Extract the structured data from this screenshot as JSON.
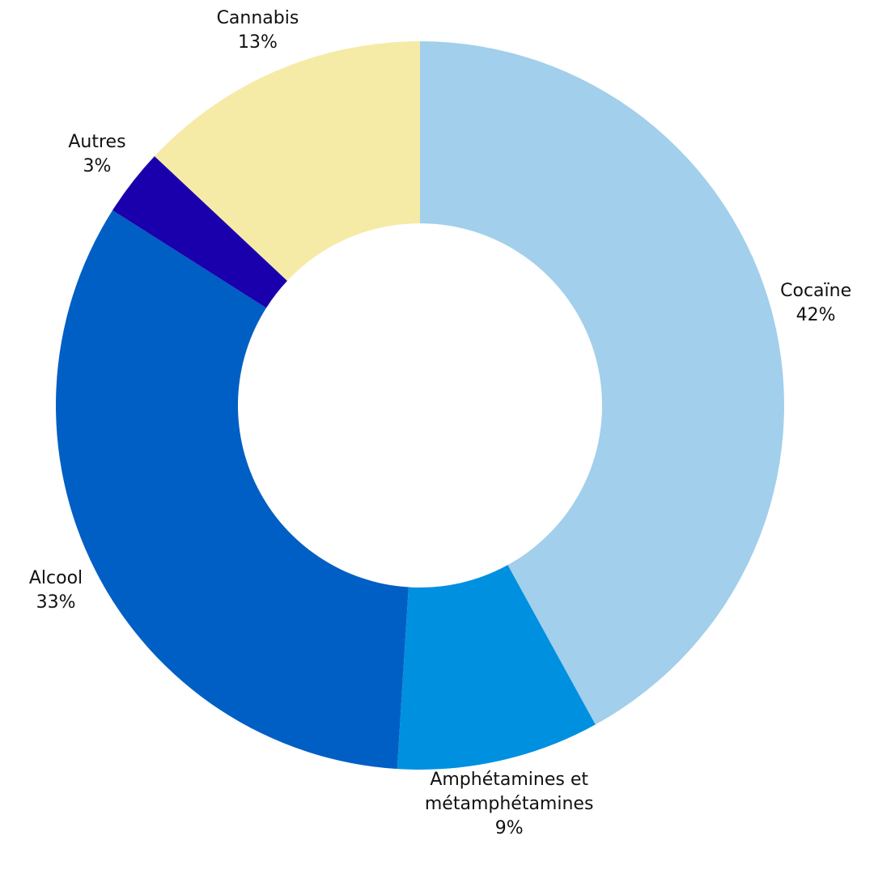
{
  "chart_data": {
    "type": "donut",
    "categories": [
      "Cocaïne",
      "Amphétamines et métamphétamines",
      "Alcool",
      "Autres",
      "Cannabis"
    ],
    "values": [
      42,
      9,
      33,
      3,
      13
    ],
    "value_labels": [
      "42%",
      "9%",
      "33%",
      "3%",
      "13%"
    ],
    "colors": [
      "#a2cfeb",
      "#0090e0",
      "#005fc4",
      "#1a00ad",
      "#f6eba6"
    ]
  }
}
